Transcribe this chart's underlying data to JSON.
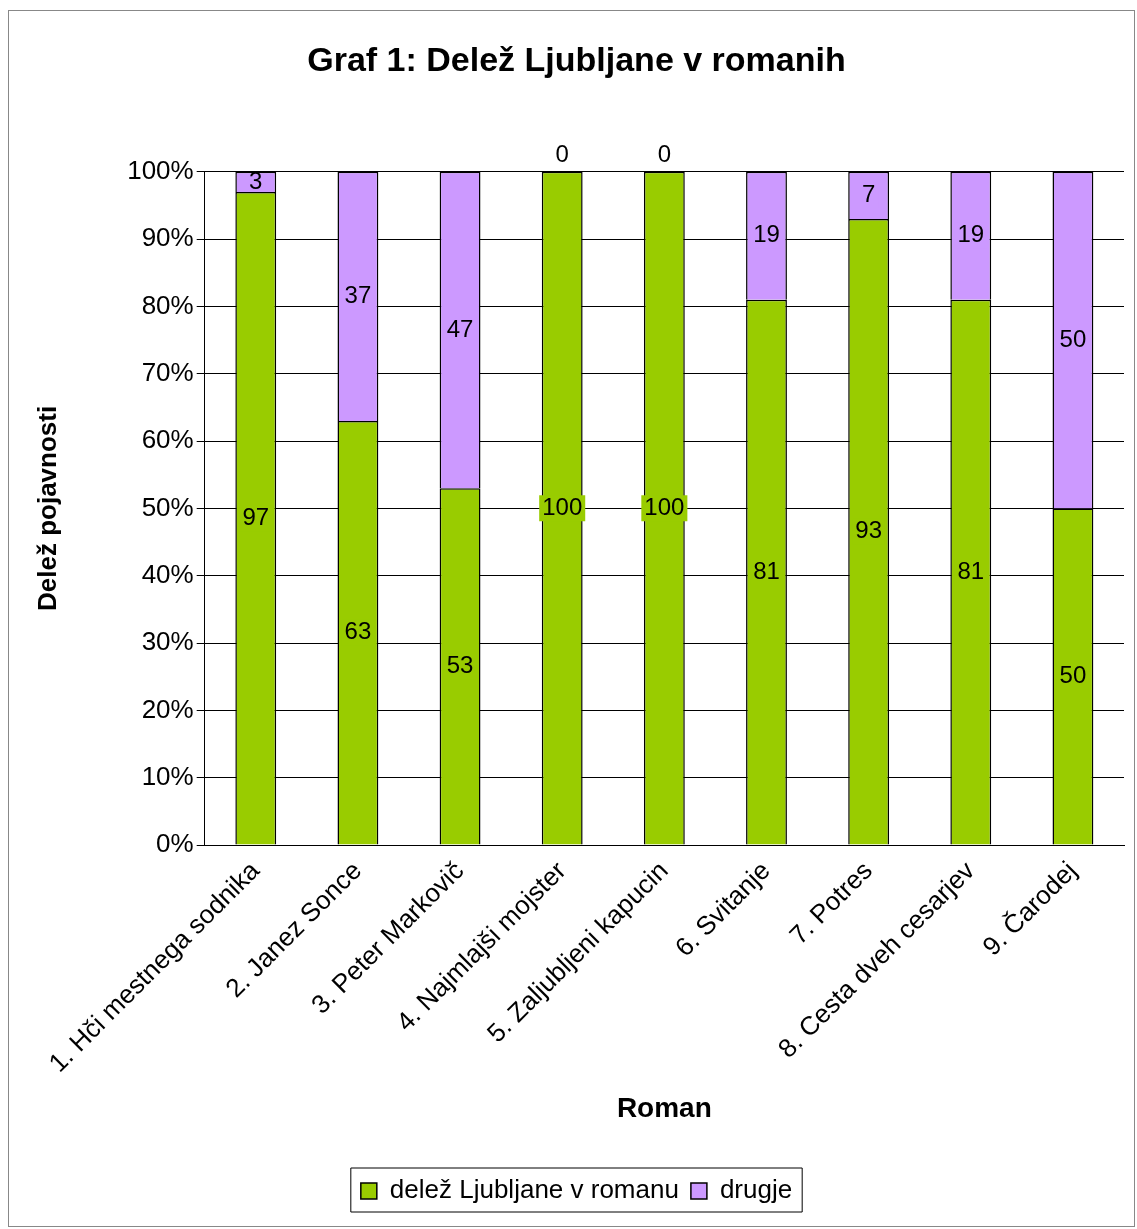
{
  "chart_data": {
    "type": "bar",
    "title": "Graf 1: Delež Ljubljane v romanih",
    "xlabel": "Roman",
    "ylabel": "Delež pojavnosti",
    "categories": [
      "1. Hči mestnega sodnika",
      "2. Janez Sonce",
      "3. Peter Markovič",
      "4. Najmlajši mojster",
      "5. Zaljubljeni kapucin",
      "6. Svitanje",
      "7. Potres",
      "8. Cesta dveh cesarjev",
      "9. Čarodej"
    ],
    "series": [
      {
        "name": "delež Ljubljane v romanu",
        "color": "#99cc00",
        "values": [
          97,
          63,
          53,
          100,
          100,
          81,
          93,
          81,
          50
        ]
      },
      {
        "name": "drugje",
        "color": "#cc99ff",
        "values": [
          3,
          37,
          47,
          0,
          0,
          19,
          7,
          19,
          50
        ]
      }
    ],
    "stacked": true,
    "ylim": [
      0,
      100
    ],
    "yticks": [
      {
        "value": 0,
        "label": "0%"
      },
      {
        "value": 10,
        "label": "10%"
      },
      {
        "value": 20,
        "label": "20%"
      },
      {
        "value": 30,
        "label": "30%"
      },
      {
        "value": 40,
        "label": "40%"
      },
      {
        "value": 50,
        "label": "50%"
      },
      {
        "value": 60,
        "label": "60%"
      },
      {
        "value": 70,
        "label": "70%"
      },
      {
        "value": 80,
        "label": "80%"
      },
      {
        "value": 90,
        "label": "90%"
      },
      {
        "value": 100,
        "label": "100%"
      }
    ],
    "grid": "y",
    "legend": "bottom",
    "data_labels": true
  }
}
